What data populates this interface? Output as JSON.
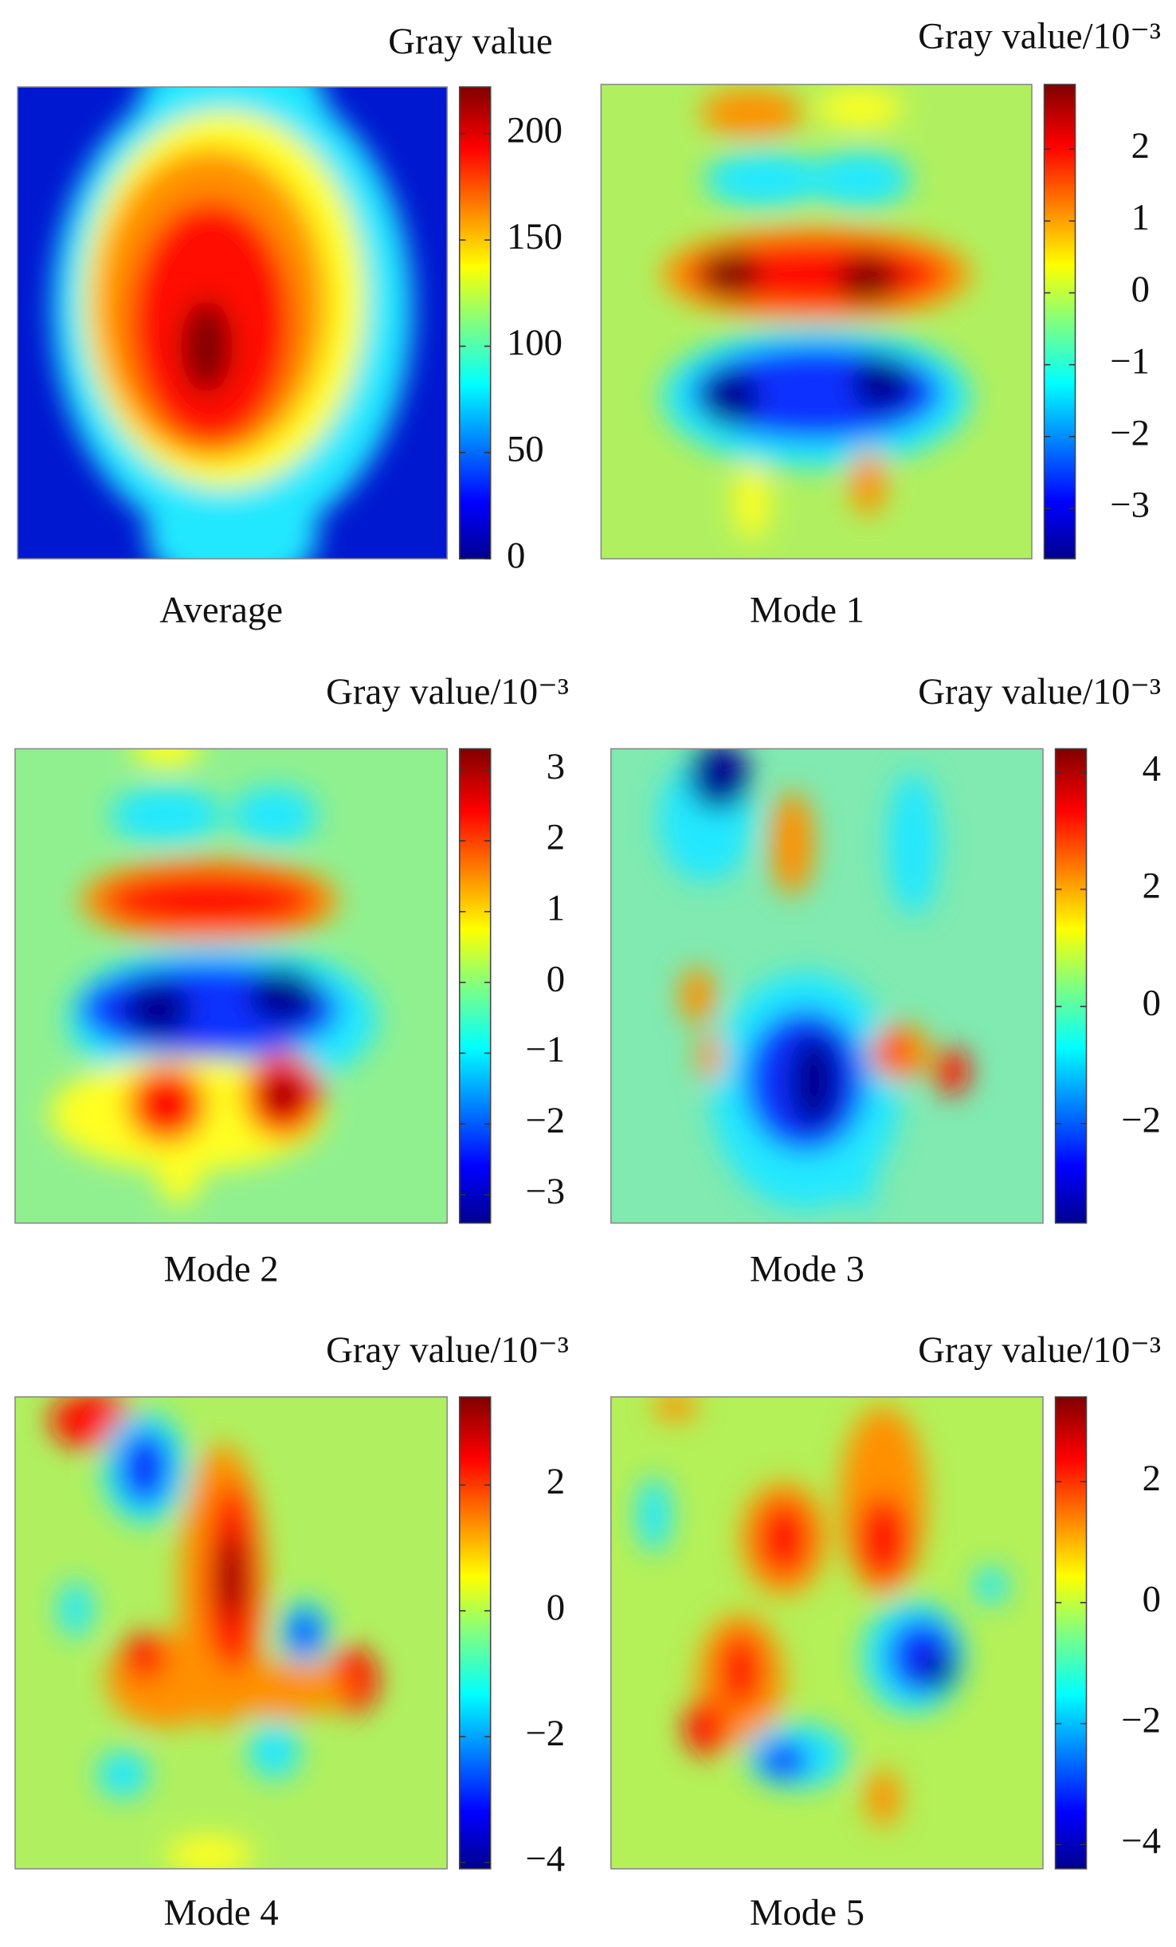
{
  "chart_data": [
    {
      "type": "heatmap",
      "title": "Average",
      "colorbar_label": "Gray value",
      "clim": [
        0,
        222
      ],
      "cticks": [
        0,
        50,
        100,
        150,
        200
      ]
    },
    {
      "type": "heatmap",
      "title": "Mode 1",
      "colorbar_label": "Gray value/10⁻³",
      "clim": [
        -3.7,
        2.9
      ],
      "cticks": [
        {
          "value": -3,
          "label": "−3"
        },
        {
          "value": -2,
          "label": "−2"
        },
        {
          "value": -1,
          "label": "−1"
        },
        0,
        1,
        2
      ]
    },
    {
      "type": "heatmap",
      "title": "Mode 2",
      "colorbar_label": "Gray value/10⁻³",
      "clim": [
        -3.4,
        3.3
      ],
      "cticks": [
        {
          "value": -3,
          "label": "−3"
        },
        {
          "value": -2,
          "label": "−2"
        },
        {
          "value": -1,
          "label": "−1"
        },
        0,
        1,
        2,
        3
      ]
    },
    {
      "type": "heatmap",
      "title": "Mode 3",
      "colorbar_label": "Gray value/10⁻³",
      "clim": [
        -3.7,
        4.4
      ],
      "cticks": [
        {
          "value": -2,
          "label": "−2"
        },
        0,
        2,
        4
      ]
    },
    {
      "type": "heatmap",
      "title": "Mode 4",
      "colorbar_label": "Gray value/10⁻³",
      "clim": [
        -4.1,
        3.4
      ],
      "cticks": [
        {
          "value": -4,
          "label": "−4"
        },
        {
          "value": -2,
          "label": "−2"
        },
        0,
        2
      ]
    },
    {
      "type": "heatmap",
      "title": "Mode 5",
      "colorbar_label": "Gray value/10⁻³",
      "clim": [
        -4.4,
        3.4
      ],
      "cticks": [
        {
          "value": -4,
          "label": "−4"
        },
        {
          "value": -2,
          "label": "−2"
        },
        0,
        2
      ]
    }
  ]
}
